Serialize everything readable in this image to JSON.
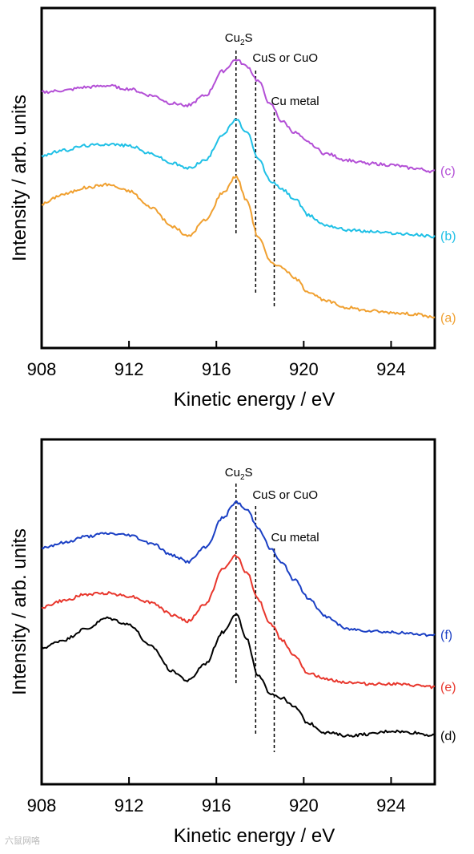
{
  "chart_data": [
    {
      "type": "line",
      "xlabel": "Kinetic energy / eV",
      "ylabel": "Intensity / arb. units",
      "xlim": [
        908,
        926
      ],
      "xticks": [
        908,
        912,
        916,
        920,
        924
      ],
      "grid": false,
      "legend": "labels at right end of each curve",
      "reference_lines": [
        {
          "label_main": "Cu",
          "label_sub": "2",
          "label_tail": "S",
          "x": 916.9
        },
        {
          "label_main": "CuS  or CuO",
          "label_sub": "",
          "label_tail": "",
          "x": 917.8
        },
        {
          "label_main": "Cu metal",
          "label_sub": "",
          "label_tail": "",
          "x": 918.65
        }
      ],
      "series": [
        {
          "name": "(a)",
          "color": "#f0a030",
          "x": [
            908,
            909,
            910,
            911,
            912,
            913,
            914,
            914.7,
            915.5,
            916.3,
            916.9,
            917.4,
            917.9,
            918.5,
            919.0,
            919.6,
            920.2,
            921,
            922,
            923,
            924,
            925,
            926
          ],
          "y": [
            5.45,
            5.75,
            5.95,
            6.05,
            5.85,
            5.35,
            4.75,
            4.45,
            4.95,
            5.8,
            6.3,
            5.55,
            4.45,
            3.65,
            3.5,
            3.15,
            2.75,
            2.45,
            2.25,
            2.15,
            2.1,
            2.05,
            1.95
          ]
        },
        {
          "name": "(b)",
          "color": "#1fc0e6",
          "x": [
            908,
            909,
            910,
            911,
            912,
            913,
            914,
            914.7,
            915.5,
            916.3,
            916.9,
            917.4,
            917.9,
            918.5,
            919.0,
            919.6,
            920.2,
            921,
            922,
            923,
            924,
            925,
            926
          ],
          "y": [
            6.95,
            7.1,
            7.25,
            7.3,
            7.25,
            7.0,
            6.7,
            6.55,
            6.8,
            7.6,
            8.05,
            7.65,
            6.85,
            6.15,
            5.9,
            5.6,
            5.1,
            4.8,
            4.65,
            4.6,
            4.55,
            4.5,
            4.45
          ]
        },
        {
          "name": "(c)",
          "color": "#b34fd6",
          "x": [
            908,
            909,
            910,
            911,
            912,
            913,
            914,
            914.7,
            915.5,
            916.3,
            916.9,
            917.4,
            917.9,
            918.5,
            919.0,
            919.6,
            920.2,
            921,
            922,
            923,
            924,
            925,
            926
          ],
          "y": [
            8.9,
            8.95,
            9.05,
            9.1,
            9.0,
            8.8,
            8.55,
            8.5,
            8.8,
            9.55,
            9.9,
            9.7,
            9.25,
            8.5,
            8.0,
            7.65,
            7.35,
            7.0,
            6.8,
            6.7,
            6.65,
            6.55,
            6.45
          ]
        }
      ]
    },
    {
      "type": "line",
      "xlabel": "Kinetic energy / eV",
      "ylabel": "Intensity / arb. units",
      "xlim": [
        908,
        926
      ],
      "xticks": [
        908,
        912,
        916,
        920,
        924
      ],
      "grid": false,
      "legend": "labels at right end of each curve",
      "reference_lines": [
        {
          "label_main": "Cu",
          "label_sub": "2",
          "label_tail": "S",
          "x": 916.9
        },
        {
          "label_main": "CuS  or CuO",
          "label_sub": "",
          "label_tail": "",
          "x": 917.8
        },
        {
          "label_main": "Cu metal",
          "label_sub": "",
          "label_tail": "",
          "x": 918.65
        }
      ],
      "series": [
        {
          "name": "(d)",
          "color": "#000000",
          "x": [
            908,
            909,
            910,
            911,
            912,
            913,
            914,
            914.7,
            915.5,
            916.3,
            916.9,
            917.4,
            917.9,
            918.5,
            919.0,
            919.6,
            920.2,
            921,
            922,
            923,
            924,
            925,
            926
          ],
          "y": [
            5.35,
            5.6,
            5.95,
            6.3,
            6.1,
            5.4,
            4.6,
            4.3,
            4.85,
            5.85,
            6.45,
            5.6,
            4.45,
            3.9,
            3.75,
            3.45,
            2.95,
            2.65,
            2.55,
            2.6,
            2.7,
            2.65,
            2.55
          ]
        },
        {
          "name": "(e)",
          "color": "#e8362c",
          "x": [
            908,
            909,
            910,
            911,
            912,
            913,
            914,
            914.7,
            915.5,
            916.3,
            916.9,
            917.4,
            917.9,
            918.5,
            919.0,
            919.6,
            920.2,
            921,
            922,
            923,
            924,
            925,
            926
          ],
          "y": [
            6.65,
            6.85,
            7.05,
            7.1,
            7.0,
            6.8,
            6.4,
            6.2,
            6.75,
            7.85,
            8.3,
            7.75,
            6.9,
            6.1,
            5.6,
            5.1,
            4.55,
            4.35,
            4.25,
            4.2,
            4.2,
            4.15,
            4.1
          ]
        },
        {
          "name": "(f)",
          "color": "#1a3fc4",
          "x": [
            908,
            909,
            910,
            911,
            912,
            913,
            914,
            914.7,
            915.5,
            916.3,
            916.9,
            917.4,
            917.9,
            918.5,
            919.0,
            919.6,
            920.2,
            921,
            922,
            923,
            924,
            925,
            926
          ],
          "y": [
            8.55,
            8.7,
            8.9,
            9.0,
            8.95,
            8.7,
            8.3,
            8.1,
            8.55,
            9.5,
            10.0,
            9.75,
            9.2,
            8.5,
            8.05,
            7.5,
            6.95,
            6.35,
            5.95,
            5.9,
            5.85,
            5.8,
            5.75
          ]
        }
      ]
    }
  ],
  "watermark": "六鼠网咯"
}
